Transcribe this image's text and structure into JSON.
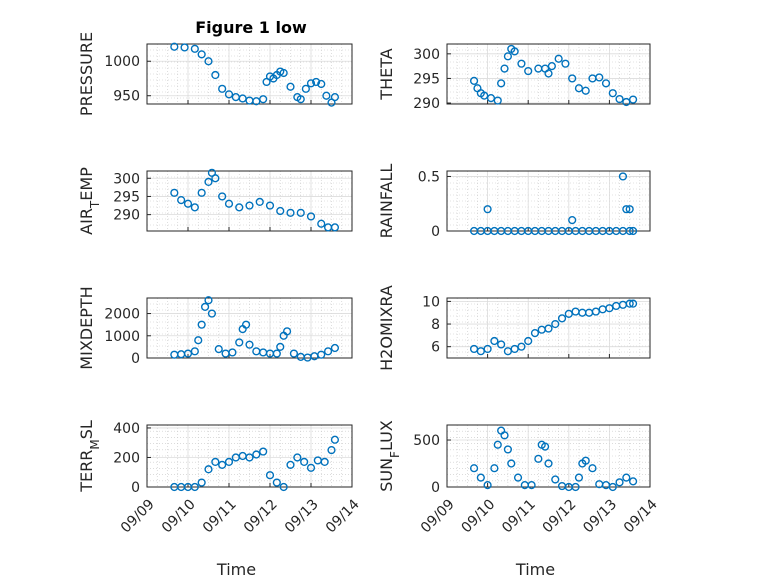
{
  "figure": {
    "title": "Figure 1 low"
  },
  "colors": {
    "marker": "#0072BD",
    "axis": "#262626",
    "grid": "#c8c8c8"
  },
  "chart_data": [
    {
      "type": "scatter",
      "ylabel": "PRESSURE",
      "xlabel": "",
      "xlim": [
        "09/09",
        "09/14"
      ],
      "ylim": [
        938,
        1025
      ],
      "yticks": [
        950,
        1000
      ],
      "grid": true,
      "minor_grid": true,
      "marker": "circle-open",
      "x": [
        "09/09 16:00",
        "09/09 22:00",
        "09/10 04:00",
        "09/10 08:00",
        "09/10 12:00",
        "09/10 16:00",
        "09/10 20:00",
        "09/11 00:00",
        "09/11 04:00",
        "09/11 08:00",
        "09/11 12:00",
        "09/11 16:00",
        "09/11 20:00",
        "09/11 22:00",
        "09/12 00:00",
        "09/12 02:00",
        "09/12 04:00",
        "09/12 06:00",
        "09/12 08:00",
        "09/12 12:00",
        "09/12 16:00",
        "09/12 18:00",
        "09/12 21:00",
        "09/13 00:00",
        "09/13 03:00",
        "09/13 06:00",
        "09/13 09:00",
        "09/13 12:00",
        "09/13 14:00"
      ],
      "y": [
        1021,
        1020,
        1018,
        1010,
        1000,
        980,
        960,
        952,
        948,
        946,
        943,
        942,
        945,
        970,
        978,
        975,
        980,
        985,
        983,
        963,
        948,
        945,
        960,
        968,
        970,
        967,
        950,
        940,
        948
      ]
    },
    {
      "type": "scatter",
      "ylabel": "THETA",
      "xlabel": "",
      "xlim": [
        "09/09",
        "09/14"
      ],
      "ylim": [
        289.8,
        302
      ],
      "yticks": [
        290,
        295,
        300
      ],
      "grid": true,
      "minor_grid": true,
      "marker": "circle-open",
      "x": [
        "09/09 16:00",
        "09/09 18:00",
        "09/09 20:00",
        "09/09 22:00",
        "09/10 02:00",
        "09/10 06:00",
        "09/10 08:00",
        "09/10 10:00",
        "09/10 12:00",
        "09/10 14:00",
        "09/10 16:00",
        "09/10 20:00",
        "09/11 00:00",
        "09/11 06:00",
        "09/11 10:00",
        "09/11 12:00",
        "09/11 14:00",
        "09/11 18:00",
        "09/11 22:00",
        "09/12 02:00",
        "09/12 06:00",
        "09/12 10:00",
        "09/12 14:00",
        "09/12 18:00",
        "09/12 22:00",
        "09/13 02:00",
        "09/13 06:00",
        "09/13 10:00",
        "09/13 14:00"
      ],
      "y": [
        294.5,
        293,
        292,
        291.5,
        291,
        290.5,
        294,
        297,
        299.5,
        301,
        300.5,
        298,
        296.5,
        297,
        297,
        296,
        297.5,
        299,
        298,
        295,
        293,
        292.5,
        295,
        295.2,
        294,
        292,
        290.8,
        290.2,
        290.7
      ]
    },
    {
      "type": "scatter",
      "ylabel": "AIR_TEMP",
      "xlabel": "",
      "xlim": [
        "09/09",
        "09/14"
      ],
      "ylim": [
        285.5,
        302
      ],
      "yticks": [
        290,
        295,
        300
      ],
      "grid": true,
      "minor_grid": true,
      "marker": "circle-open",
      "x": [
        "09/09 16:00",
        "09/09 20:00",
        "09/10 00:00",
        "09/10 04:00",
        "09/10 08:00",
        "09/10 12:00",
        "09/10 14:00",
        "09/10 16:00",
        "09/10 20:00",
        "09/11 00:00",
        "09/11 06:00",
        "09/11 12:00",
        "09/11 18:00",
        "09/12 00:00",
        "09/12 06:00",
        "09/12 12:00",
        "09/12 18:00",
        "09/13 00:00",
        "09/13 06:00",
        "09/13 10:00",
        "09/13 14:00"
      ],
      "y": [
        296,
        294,
        293,
        292,
        296,
        299,
        301.5,
        300,
        295,
        293,
        292,
        292.5,
        293.5,
        292.5,
        291,
        290.5,
        290.5,
        289.5,
        287.5,
        286.5,
        286.5
      ]
    },
    {
      "type": "scatter",
      "ylabel": "RAINFALL",
      "xlabel": "",
      "xlim": [
        "09/09",
        "09/14"
      ],
      "ylim": [
        0,
        0.55
      ],
      "yticks": [
        0,
        0.5
      ],
      "grid": true,
      "minor_grid": true,
      "marker": "circle-open",
      "x": [
        "09/09 16:00",
        "09/09 20:00",
        "09/10 00:00",
        "09/10 04:00",
        "09/10 08:00",
        "09/10 12:00",
        "09/10 16:00",
        "09/10 20:00",
        "09/11 00:00",
        "09/11 04:00",
        "09/11 08:00",
        "09/11 12:00",
        "09/11 16:00",
        "09/11 20:00",
        "09/12 00:00",
        "09/12 04:00",
        "09/12 08:00",
        "09/12 12:00",
        "09/12 16:00",
        "09/12 20:00",
        "09/13 00:00",
        "09/13 04:00",
        "09/13 08:00",
        "09/13 12:00",
        "09/13 14:00",
        "09/10 00:00",
        "09/12 02:00",
        "09/13 08:00",
        "09/13 10:00",
        "09/13 12:00"
      ],
      "y": [
        0,
        0,
        0,
        0,
        0,
        0,
        0,
        0,
        0,
        0,
        0,
        0,
        0,
        0,
        0,
        0,
        0,
        0,
        0,
        0,
        0,
        0,
        0,
        0,
        0,
        0.2,
        0.1,
        0.5,
        0.2,
        0.2
      ]
    },
    {
      "type": "scatter",
      "ylabel": "MIXDEPTH",
      "xlabel": "",
      "xlim": [
        "09/09",
        "09/14"
      ],
      "ylim": [
        0,
        2700
      ],
      "yticks": [
        0,
        1000,
        2000
      ],
      "grid": true,
      "minor_grid": true,
      "marker": "circle-open",
      "x": [
        "09/09 16:00",
        "09/09 20:00",
        "09/10 00:00",
        "09/10 04:00",
        "09/10 06:00",
        "09/10 08:00",
        "09/10 10:00",
        "09/10 12:00",
        "09/10 14:00",
        "09/10 18:00",
        "09/10 22:00",
        "09/11 02:00",
        "09/11 06:00",
        "09/11 08:00",
        "09/11 10:00",
        "09/11 12:00",
        "09/11 16:00",
        "09/11 20:00",
        "09/12 00:00",
        "09/12 04:00",
        "09/12 06:00",
        "09/12 08:00",
        "09/12 10:00",
        "09/12 14:00",
        "09/12 18:00",
        "09/12 22:00",
        "09/13 02:00",
        "09/13 06:00",
        "09/13 10:00",
        "09/13 14:00"
      ],
      "y": [
        150,
        170,
        200,
        300,
        800,
        1500,
        2300,
        2600,
        2000,
        400,
        200,
        250,
        700,
        1300,
        1500,
        600,
        300,
        250,
        200,
        200,
        500,
        1000,
        1200,
        200,
        50,
        20,
        80,
        150,
        300,
        450
      ]
    },
    {
      "type": "scatter",
      "ylabel": "H2OMIXRA",
      "xlabel": "",
      "xlim": [
        "09/09",
        "09/14"
      ],
      "ylim": [
        5,
        10.3
      ],
      "yticks": [
        6,
        8,
        10
      ],
      "grid": true,
      "minor_grid": true,
      "marker": "circle-open",
      "x": [
        "09/09 16:00",
        "09/09 20:00",
        "09/10 00:00",
        "09/10 04:00",
        "09/10 08:00",
        "09/10 12:00",
        "09/10 16:00",
        "09/10 20:00",
        "09/11 00:00",
        "09/11 04:00",
        "09/11 08:00",
        "09/11 12:00",
        "09/11 16:00",
        "09/11 20:00",
        "09/12 00:00",
        "09/12 04:00",
        "09/12 08:00",
        "09/12 12:00",
        "09/12 16:00",
        "09/12 20:00",
        "09/13 00:00",
        "09/13 04:00",
        "09/13 08:00",
        "09/13 12:00",
        "09/13 14:00"
      ],
      "y": [
        5.8,
        5.6,
        5.8,
        6.5,
        6.2,
        5.6,
        5.8,
        6,
        6.5,
        7.2,
        7.5,
        7.6,
        8,
        8.5,
        8.9,
        9.1,
        9,
        9,
        9.1,
        9.3,
        9.4,
        9.6,
        9.7,
        9.8,
        9.8
      ]
    },
    {
      "type": "scatter",
      "ylabel": "TERR_MSL",
      "xlabel": "Time",
      "xlim": [
        "09/09",
        "09/14"
      ],
      "ylim": [
        0,
        420
      ],
      "yticks": [
        0,
        200,
        400
      ],
      "xticks": [
        "09/09",
        "09/10",
        "09/11",
        "09/12",
        "09/13",
        "09/14"
      ],
      "grid": true,
      "minor_grid": true,
      "marker": "circle-open",
      "x": [
        "09/09 16:00",
        "09/09 20:00",
        "09/10 00:00",
        "09/10 04:00",
        "09/10 08:00",
        "09/10 12:00",
        "09/10 16:00",
        "09/10 20:00",
        "09/11 00:00",
        "09/11 04:00",
        "09/11 08:00",
        "09/11 12:00",
        "09/11 16:00",
        "09/11 20:00",
        "09/12 00:00",
        "09/12 04:00",
        "09/12 08:00",
        "09/12 12:00",
        "09/12 16:00",
        "09/12 20:00",
        "09/13 00:00",
        "09/13 04:00",
        "09/13 08:00",
        "09/13 12:00",
        "09/13 14:00"
      ],
      "y": [
        0,
        0,
        0,
        0,
        30,
        120,
        170,
        150,
        170,
        200,
        210,
        200,
        220,
        240,
        80,
        30,
        0,
        150,
        200,
        170,
        130,
        180,
        170,
        250,
        320
      ]
    },
    {
      "type": "scatter",
      "ylabel": "SUN_FLUX",
      "xlabel": "Time",
      "xlim": [
        "09/09",
        "09/14"
      ],
      "ylim": [
        0,
        660
      ],
      "yticks": [
        0,
        500
      ],
      "xticks": [
        "09/09",
        "09/10",
        "09/11",
        "09/12",
        "09/13",
        "09/14"
      ],
      "grid": true,
      "minor_grid": true,
      "marker": "circle-open",
      "x": [
        "09/09 16:00",
        "09/09 20:00",
        "09/10 00:00",
        "09/10 04:00",
        "09/10 06:00",
        "09/10 08:00",
        "09/10 10:00",
        "09/10 12:00",
        "09/10 14:00",
        "09/10 18:00",
        "09/10 22:00",
        "09/11 02:00",
        "09/11 06:00",
        "09/11 08:00",
        "09/11 10:00",
        "09/11 12:00",
        "09/11 16:00",
        "09/11 20:00",
        "09/12 00:00",
        "09/12 04:00",
        "09/12 06:00",
        "09/12 08:00",
        "09/12 10:00",
        "09/12 14:00",
        "09/12 18:00",
        "09/12 22:00",
        "09/13 02:00",
        "09/13 06:00",
        "09/13 10:00",
        "09/13 14:00"
      ],
      "y": [
        200,
        100,
        20,
        200,
        450,
        600,
        550,
        400,
        250,
        100,
        20,
        20,
        300,
        450,
        430,
        250,
        80,
        10,
        0,
        0,
        100,
        250,
        280,
        200,
        30,
        20,
        0,
        50,
        100,
        60
      ]
    }
  ]
}
